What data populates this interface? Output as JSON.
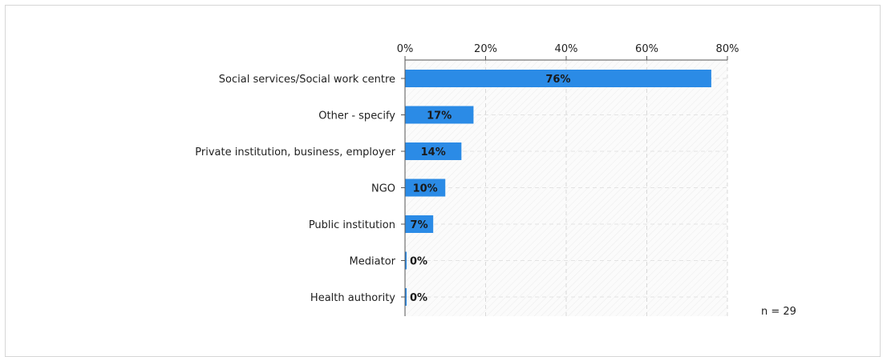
{
  "chart_data": {
    "type": "bar",
    "orientation": "horizontal",
    "categories": [
      "Social services/Social work centre",
      "Other - specify",
      "Private institution, business, employer",
      "NGO",
      "Public institution",
      "Mediator",
      "Health authority"
    ],
    "values": [
      76,
      17,
      14,
      10,
      7,
      0,
      0
    ],
    "value_labels": [
      "76%",
      "17%",
      "14%",
      "10%",
      "7%",
      "0%",
      "0%"
    ],
    "xlim": [
      0,
      80
    ],
    "xticks": [
      0,
      20,
      40,
      60,
      80
    ],
    "xtick_labels": [
      "0%",
      "20%",
      "40%",
      "60%",
      "80%"
    ],
    "x_axis_position": "top",
    "grid": true,
    "bar_color": "#2b8be6",
    "note": "n = 29"
  }
}
